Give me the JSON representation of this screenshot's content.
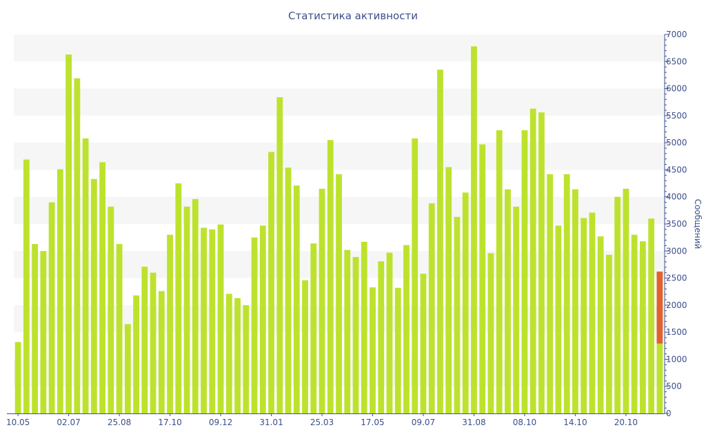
{
  "chart_data": {
    "type": "bar",
    "title": "Статистика активности",
    "ylabel": "Сообщений",
    "ylim": [
      0,
      7000
    ],
    "y_ticks": [
      0,
      500,
      1000,
      1500,
      2000,
      2500,
      3000,
      3500,
      4000,
      4500,
      5000,
      5500,
      6000,
      6500,
      7000
    ],
    "x_tick_labels": [
      {
        "index": 0,
        "label": "10.05"
      },
      {
        "index": 6,
        "label": "02.07"
      },
      {
        "index": 12,
        "label": "25.08"
      },
      {
        "index": 18,
        "label": "17.10"
      },
      {
        "index": 24,
        "label": "09.12"
      },
      {
        "index": 30,
        "label": "31.01"
      },
      {
        "index": 36,
        "label": "25.03"
      },
      {
        "index": 42,
        "label": "17.05"
      },
      {
        "index": 48,
        "label": "09.07"
      },
      {
        "index": 54,
        "label": "31.08"
      },
      {
        "index": 60,
        "label": "08.10"
      },
      {
        "index": 66,
        "label": "14.10"
      },
      {
        "index": 72,
        "label": "20.10"
      }
    ],
    "bar_color": "#bde22e",
    "highlight_color": "#e0622f",
    "series": [
      {
        "values": [
          1320,
          4690,
          3130,
          3000,
          3900,
          4510,
          6630,
          6190,
          5080,
          4330,
          4640,
          3820,
          3130,
          1650,
          2180,
          2710,
          2600,
          2260,
          3300,
          4250,
          3820,
          3960,
          3430,
          3400,
          3490,
          2210,
          2130,
          2000,
          3250,
          3470,
          4830,
          5840,
          4540,
          4210,
          2460,
          3140,
          4150,
          5050,
          4420,
          3020,
          2890,
          3170,
          2330,
          2810,
          2970,
          2320,
          3110,
          5080,
          2580,
          3880,
          6350,
          4550,
          3630,
          4080,
          6780,
          4970,
          2960,
          5230,
          4140,
          3820,
          5230,
          5630,
          5560,
          4420,
          3470,
          4420,
          4140,
          3610,
          3710,
          3270,
          2930,
          4000,
          4150,
          3300,
          3180,
          3600,
          1290
        ]
      },
      {
        "values": [
          0,
          0,
          0,
          0,
          0,
          0,
          0,
          0,
          0,
          0,
          0,
          0,
          0,
          0,
          0,
          0,
          0,
          0,
          0,
          0,
          0,
          0,
          0,
          0,
          0,
          0,
          0,
          0,
          0,
          0,
          0,
          0,
          0,
          0,
          0,
          0,
          0,
          0,
          0,
          0,
          0,
          0,
          0,
          0,
          0,
          0,
          0,
          0,
          0,
          0,
          0,
          0,
          0,
          0,
          0,
          0,
          0,
          0,
          0,
          0,
          0,
          0,
          0,
          0,
          0,
          0,
          0,
          0,
          0,
          0,
          0,
          0,
          0,
          0,
          0,
          0,
          1330
        ]
      }
    ],
    "stacked": true,
    "grid": "alternating-bands",
    "y_axis_position": "right"
  }
}
